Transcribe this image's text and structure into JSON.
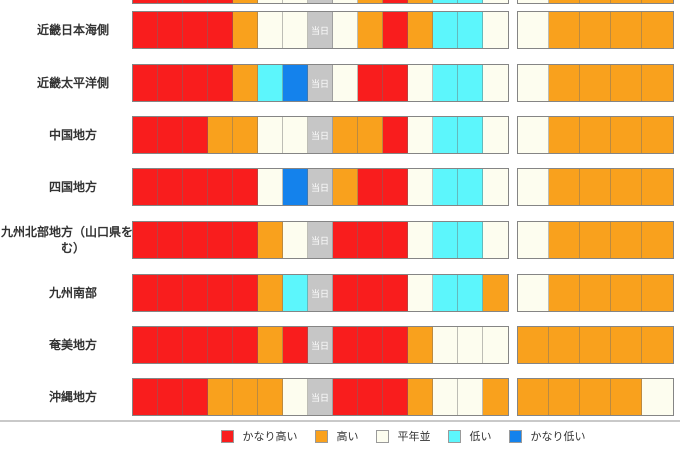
{
  "today_marker": "当日",
  "chart_data": {
    "type": "heatmap",
    "title": "",
    "today_marker": "当日",
    "today_index": 7,
    "levels": {
      "vh": {
        "label": "かなり高い",
        "color": "#f91d1d"
      },
      "h": {
        "label": "高い",
        "color": "#f9a11d"
      },
      "n": {
        "label": "平年並",
        "color": "#fdfdef"
      },
      "l": {
        "label": "低い",
        "color": "#5cf6fc"
      },
      "vl": {
        "label": "かなり低い",
        "color": "#1482ec"
      },
      "today": {
        "label": "当日",
        "color": "#c6c6c6"
      }
    },
    "legend": [
      {
        "label": "かなり高い",
        "color": "#f91d1d"
      },
      {
        "label": "高い",
        "color": "#f9a11d"
      },
      {
        "label": "平年並",
        "color": "#fdfdef"
      },
      {
        "label": "低い",
        "color": "#5cf6fc"
      },
      {
        "label": "かなり低い",
        "color": "#1482ec"
      }
    ],
    "cutoff_row": {
      "daily": [
        "vh",
        "vh",
        "vh",
        "vh",
        "h",
        "n",
        "n",
        "today",
        "n",
        "h",
        "vh",
        "h",
        "l",
        "l",
        "n"
      ],
      "weekly": [
        "n",
        "h",
        "h",
        "h",
        "h"
      ]
    },
    "rows": [
      {
        "region": "近畿日本海側",
        "daily": [
          "vh",
          "vh",
          "vh",
          "vh",
          "h",
          "n",
          "n",
          "today",
          "n",
          "h",
          "vh",
          "h",
          "l",
          "l",
          "n"
        ],
        "weekly": [
          "n",
          "h",
          "h",
          "h",
          "h"
        ]
      },
      {
        "region": "近畿太平洋側",
        "daily": [
          "vh",
          "vh",
          "vh",
          "vh",
          "h",
          "l",
          "vl",
          "today",
          "n",
          "vh",
          "vh",
          "n",
          "l",
          "l",
          "n"
        ],
        "weekly": [
          "n",
          "h",
          "h",
          "h",
          "h"
        ]
      },
      {
        "region": "中国地方",
        "daily": [
          "vh",
          "vh",
          "vh",
          "h",
          "h",
          "n",
          "n",
          "today",
          "h",
          "h",
          "vh",
          "n",
          "l",
          "l",
          "n"
        ],
        "weekly": [
          "n",
          "h",
          "h",
          "h",
          "h"
        ]
      },
      {
        "region": "四国地方",
        "daily": [
          "vh",
          "vh",
          "vh",
          "vh",
          "vh",
          "n",
          "vl",
          "today",
          "h",
          "vh",
          "vh",
          "n",
          "l",
          "l",
          "n"
        ],
        "weekly": [
          "n",
          "h",
          "h",
          "h",
          "h"
        ]
      },
      {
        "region": "九州北部地方（山口県を含む）",
        "daily": [
          "vh",
          "vh",
          "vh",
          "vh",
          "vh",
          "h",
          "n",
          "today",
          "vh",
          "vh",
          "vh",
          "n",
          "l",
          "l",
          "n"
        ],
        "weekly": [
          "n",
          "h",
          "h",
          "h",
          "h"
        ]
      },
      {
        "region": "九州南部",
        "daily": [
          "vh",
          "vh",
          "vh",
          "vh",
          "vh",
          "h",
          "l",
          "today",
          "vh",
          "vh",
          "vh",
          "n",
          "l",
          "l",
          "h"
        ],
        "weekly": [
          "n",
          "h",
          "h",
          "h",
          "h"
        ]
      },
      {
        "region": "奄美地方",
        "daily": [
          "vh",
          "vh",
          "vh",
          "vh",
          "vh",
          "h",
          "vh",
          "today",
          "vh",
          "vh",
          "vh",
          "h",
          "n",
          "n",
          "n"
        ],
        "weekly": [
          "h",
          "h",
          "h",
          "h",
          "h"
        ]
      },
      {
        "region": "沖縄地方",
        "daily": [
          "vh",
          "vh",
          "vh",
          "h",
          "h",
          "h",
          "n",
          "today",
          "vh",
          "vh",
          "vh",
          "h",
          "n",
          "n",
          "h"
        ],
        "weekly": [
          "h",
          "h",
          "h",
          "h",
          "n"
        ]
      }
    ]
  }
}
